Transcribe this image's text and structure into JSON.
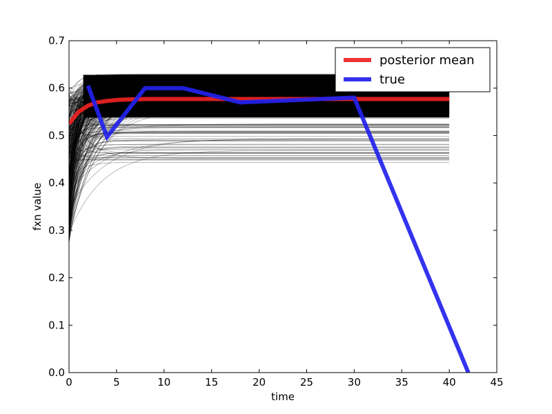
{
  "chart_data": {
    "type": "line",
    "title": "",
    "xlabel": "time",
    "ylabel": "fxn value",
    "xlim": [
      0,
      45
    ],
    "ylim": [
      0,
      0.7
    ],
    "xticks": [
      0,
      5,
      10,
      15,
      20,
      25,
      30,
      35,
      40,
      45
    ],
    "yticks": [
      0.0,
      0.1,
      0.2,
      0.3,
      0.4,
      0.5,
      0.6,
      0.7
    ],
    "xtick_labels": [
      "0",
      "5",
      "10",
      "15",
      "20",
      "25",
      "30",
      "35",
      "40",
      "45"
    ],
    "ytick_labels": [
      "0.0",
      "0.1",
      "0.2",
      "0.3",
      "0.4",
      "0.5",
      "0.6",
      "0.7"
    ],
    "grid": false,
    "legend": "top-right",
    "posterior_samples": {
      "color": "#000000",
      "x_range": [
        0,
        40
      ],
      "asymptote_range": [
        0.44,
        0.63
      ],
      "start_range": [
        0.27,
        0.6
      ]
    },
    "series": [
      {
        "name": "posterior mean",
        "color": "#ee2222",
        "x": [
          0,
          1,
          2,
          3,
          4,
          5,
          6,
          8,
          10,
          12,
          15,
          20,
          25,
          30,
          35,
          40
        ],
        "y": [
          0.525,
          0.55,
          0.563,
          0.57,
          0.573,
          0.575,
          0.576,
          0.577,
          0.577,
          0.577,
          0.577,
          0.577,
          0.577,
          0.577,
          0.577,
          0.577
        ]
      },
      {
        "name": "true",
        "color": "#2222ee",
        "x": [
          2,
          4,
          8,
          12,
          18,
          30,
          42
        ],
        "y": [
          0.605,
          0.497,
          0.6,
          0.6,
          0.57,
          0.58,
          0.0
        ]
      }
    ]
  }
}
